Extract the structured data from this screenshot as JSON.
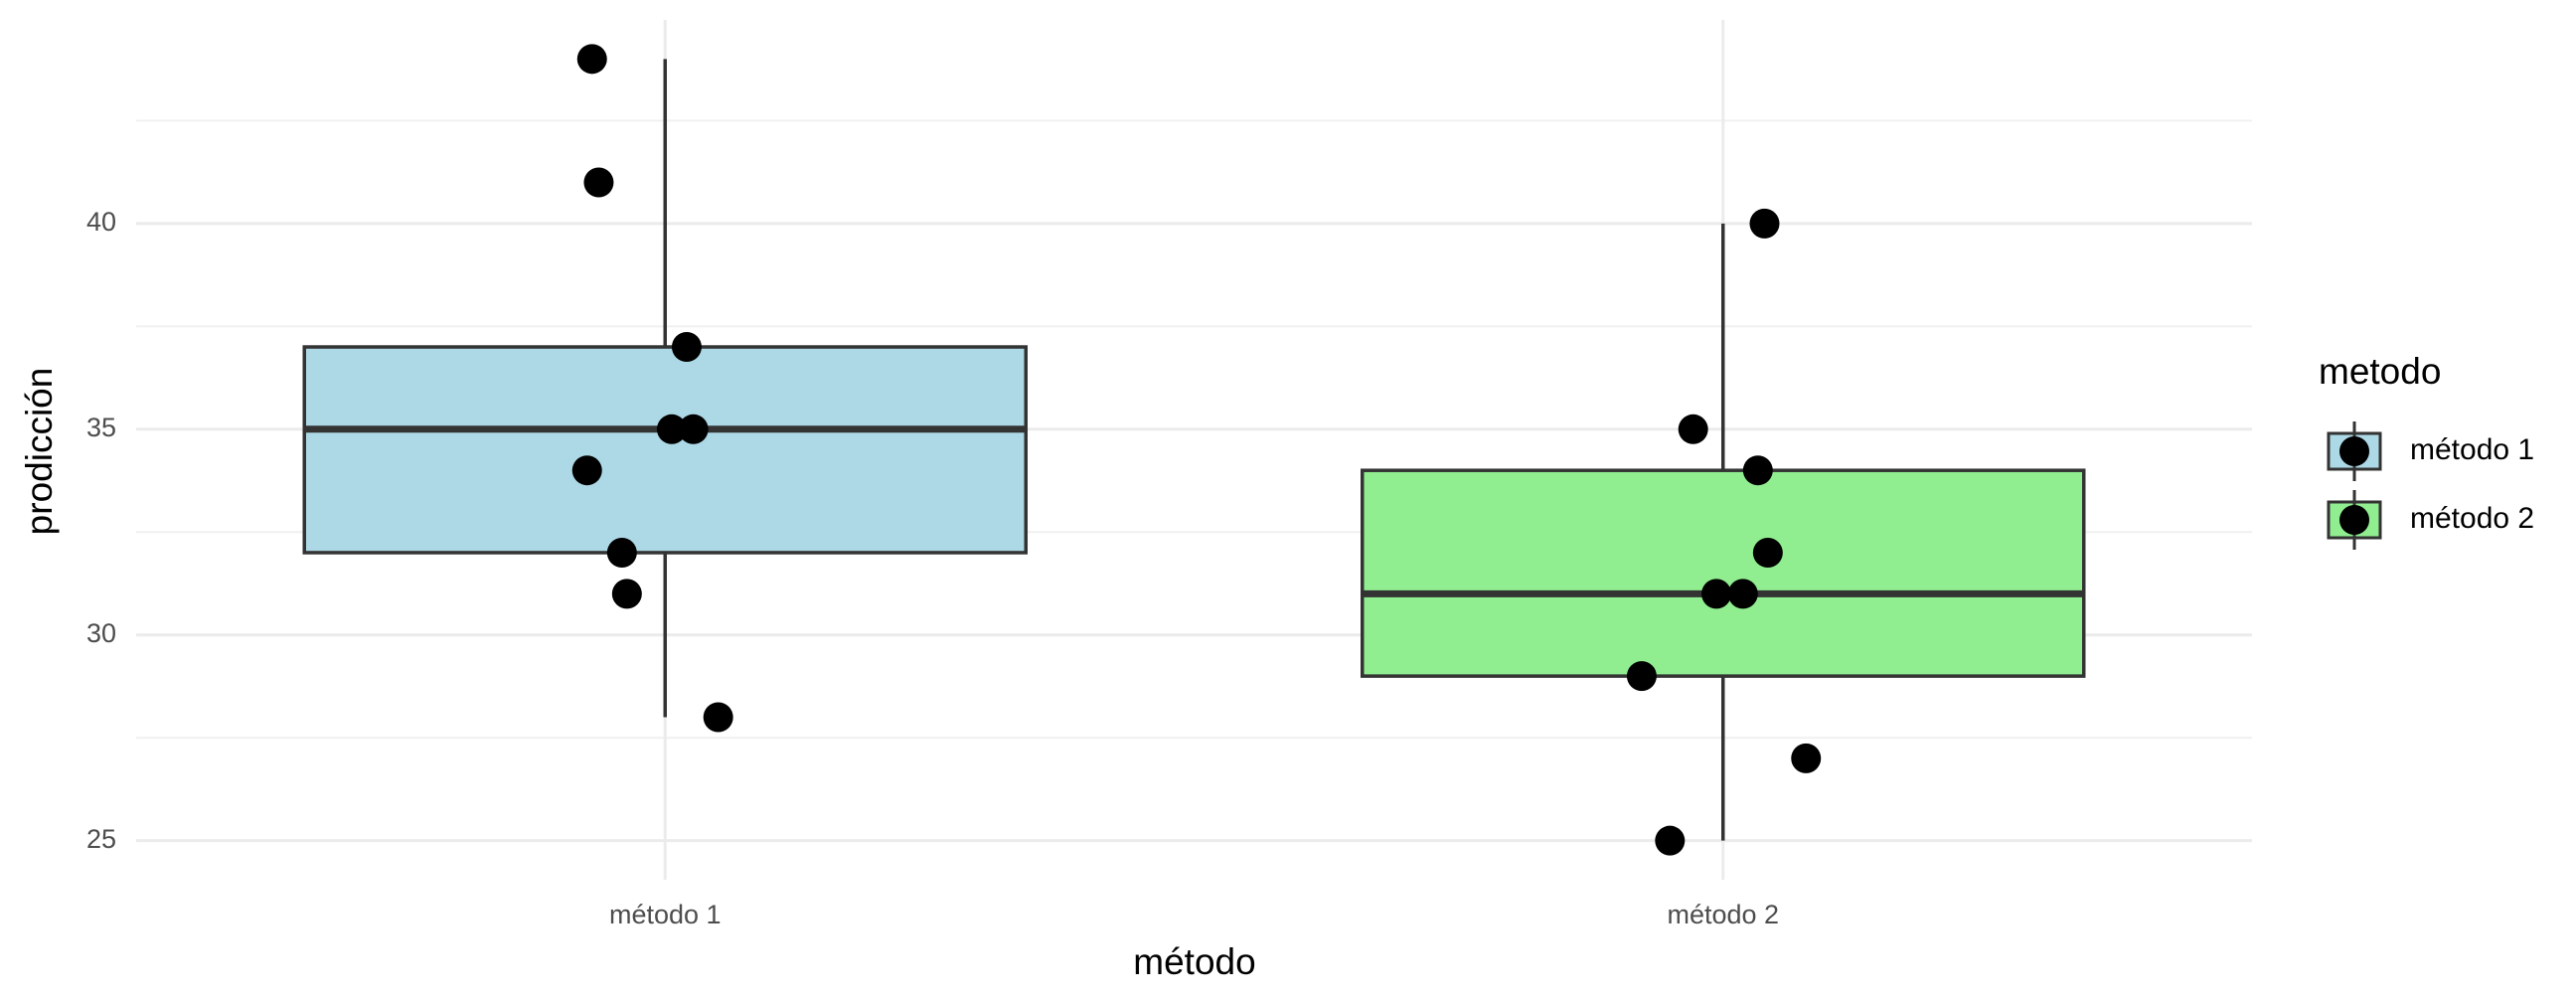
{
  "chart_data": {
    "type": "boxplot",
    "x_label": "método",
    "y_label": "prodicción",
    "categories": [
      "método 1",
      "método 2"
    ],
    "legend_title": "metodo",
    "legend": "right",
    "series": [
      {
        "name": "método 1",
        "color": "#add8e6",
        "whisker_low": 28,
        "q1": 32,
        "median": 35,
        "q3": 37,
        "whisker_high": 44,
        "points": [
          44,
          41,
          37,
          35,
          35,
          34,
          32,
          31,
          28
        ]
      },
      {
        "name": "método 2",
        "color": "#90ee90",
        "whisker_low": 25,
        "q1": 29,
        "median": 31,
        "q3": 34,
        "whisker_high": 40,
        "points": [
          40,
          35,
          34,
          32,
          31,
          31,
          29,
          27,
          25
        ]
      }
    ],
    "point_color": "#000000",
    "ylim": [
      24.05,
      44.95
    ],
    "yticks": [
      25,
      30,
      35,
      40
    ],
    "minor_yticks": [
      27.5,
      32.5,
      37.5,
      42.5
    ],
    "grid": true
  }
}
